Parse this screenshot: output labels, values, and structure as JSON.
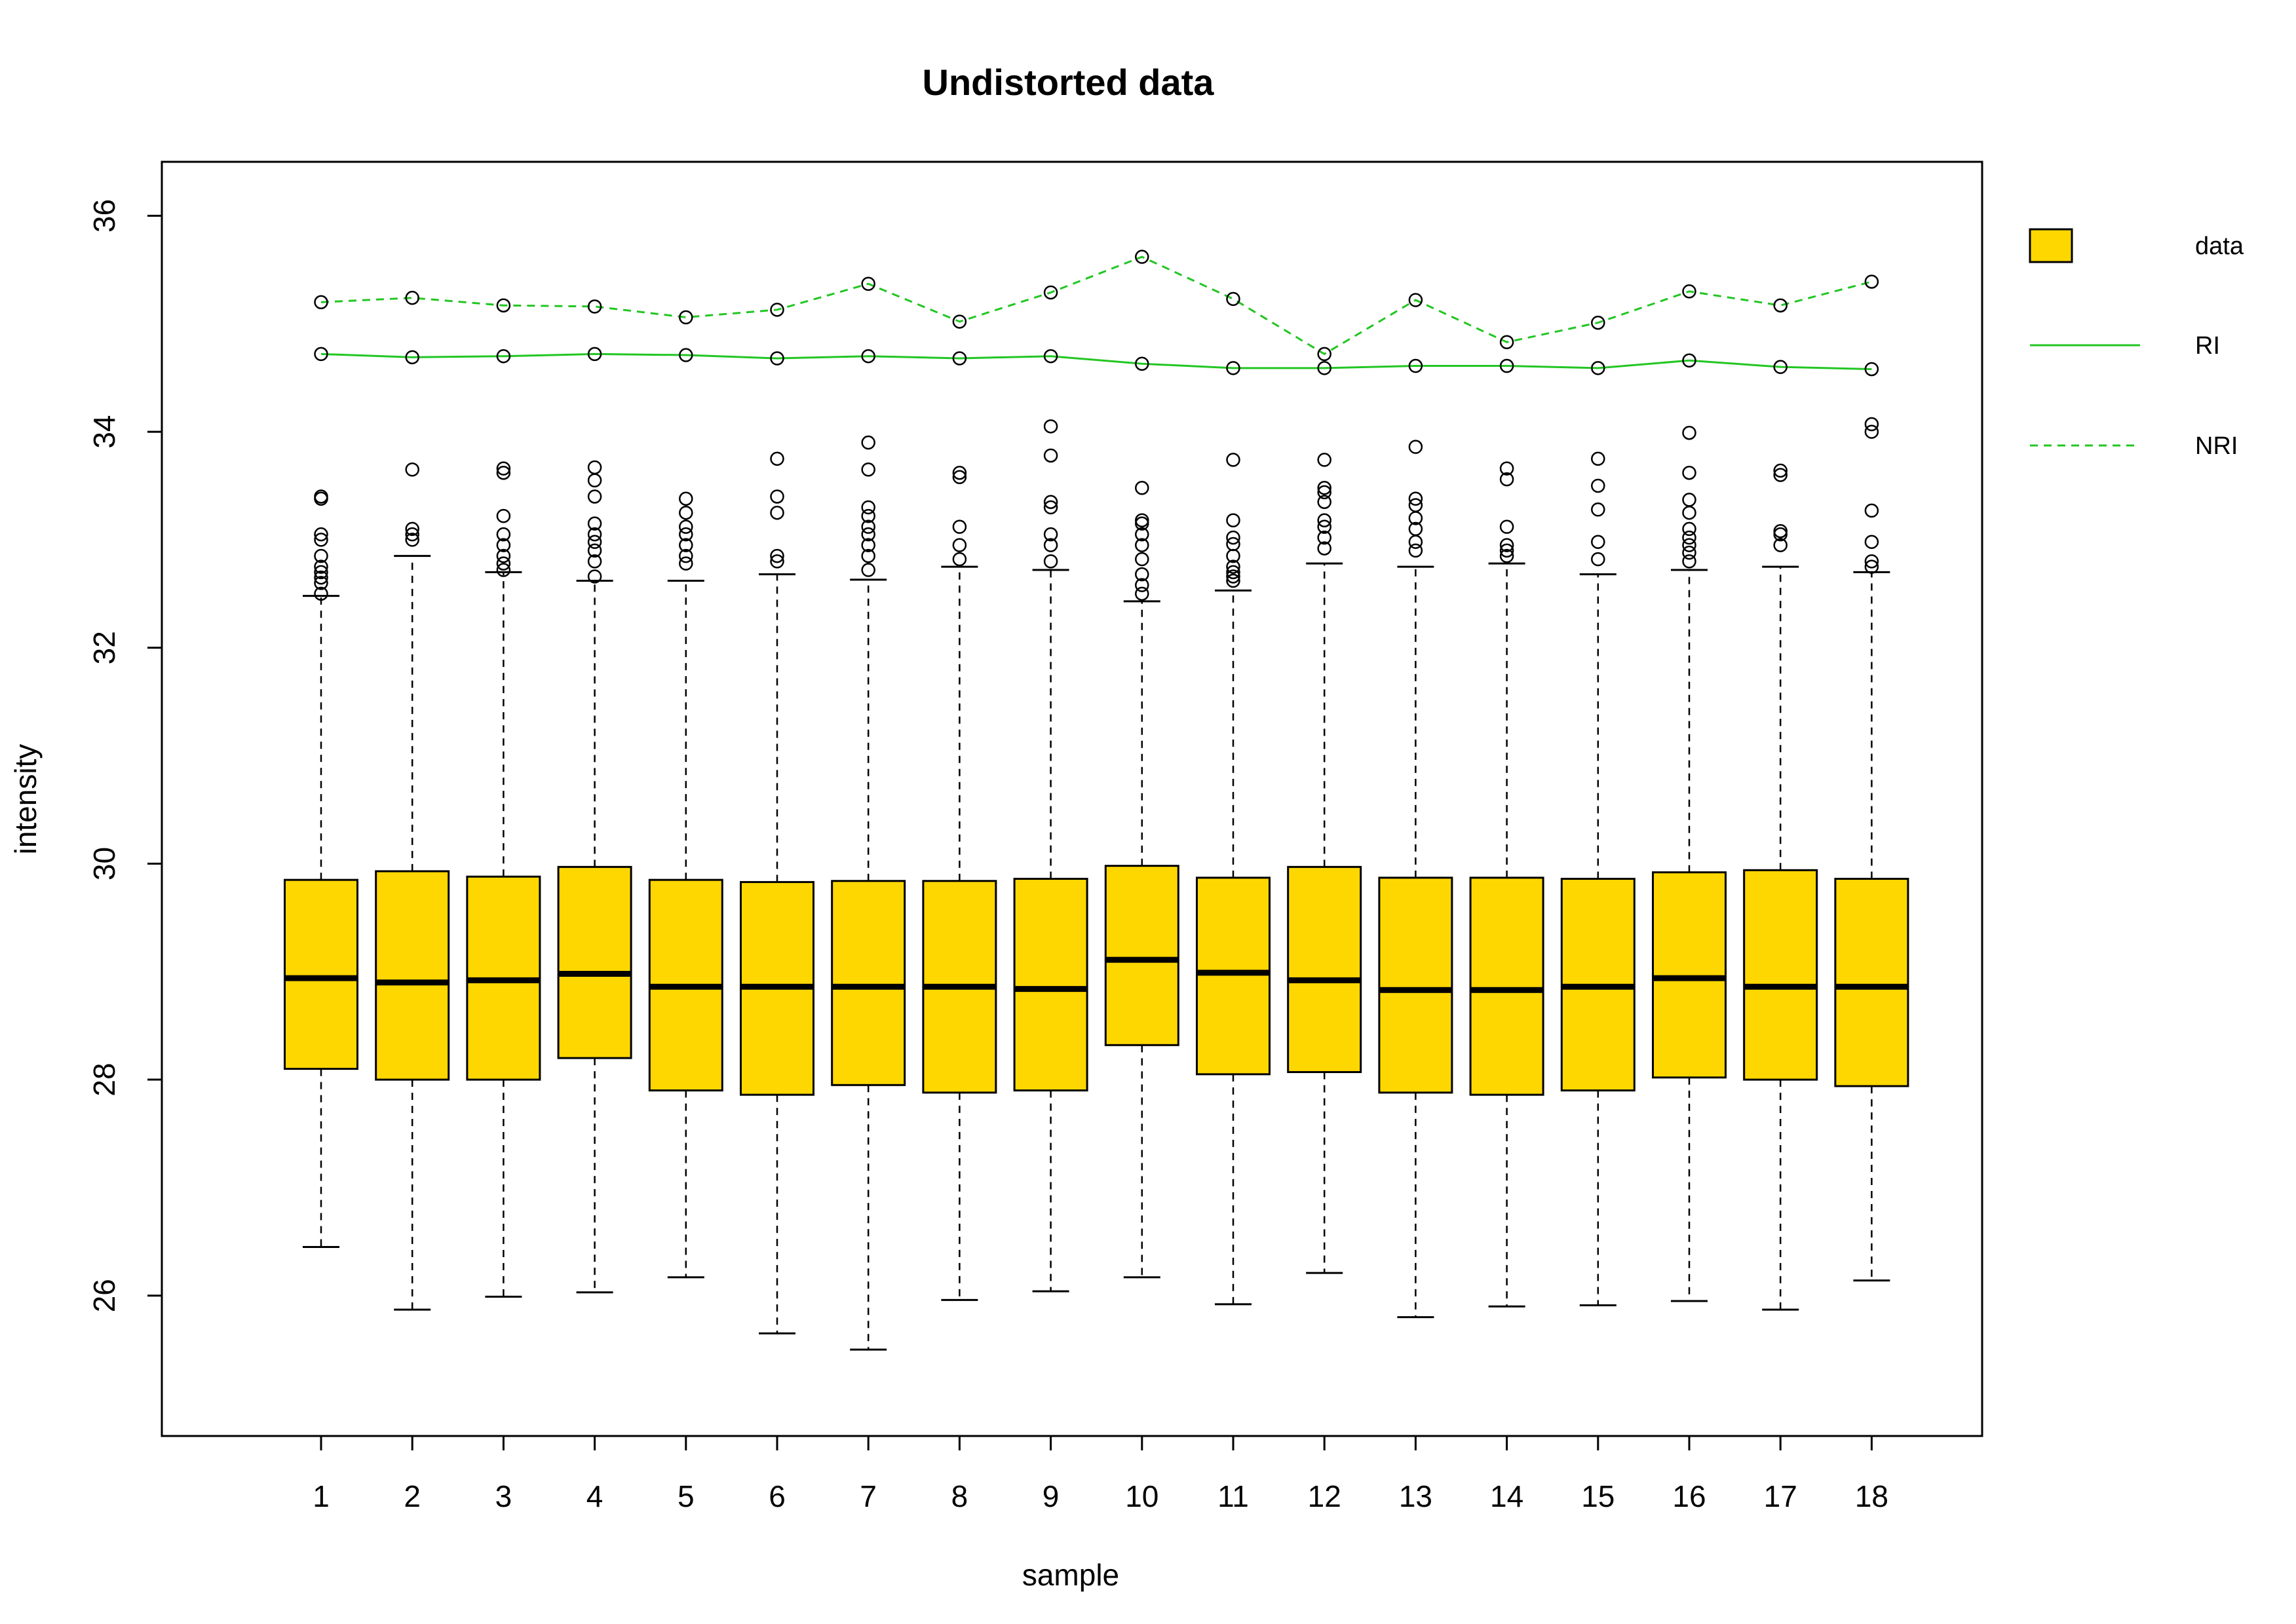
{
  "chart_data": {
    "type": "boxplot",
    "title": "Undistorted data",
    "xlabel": "sample",
    "ylabel": "intensity",
    "ylim": [
      24.7,
      36.5
    ],
    "y_ticks": [
      "26",
      "28",
      "30",
      "32",
      "34",
      "36"
    ],
    "categories": [
      "1",
      "2",
      "3",
      "4",
      "5",
      "6",
      "7",
      "8",
      "9",
      "10",
      "11",
      "12",
      "13",
      "14",
      "15",
      "16",
      "17",
      "18"
    ],
    "box_color": "#FFD700",
    "line_color": "#22C622",
    "legend": {
      "position": "right",
      "items": [
        {
          "label": "data",
          "kind": "box"
        },
        {
          "label": "RI",
          "kind": "solid-line"
        },
        {
          "label": "NRI",
          "kind": "dashed-line"
        }
      ]
    },
    "boxes": [
      {
        "sample": "1",
        "whisker_low": 26.45,
        "q1": 28.1,
        "median": 28.94,
        "q3": 29.85,
        "whisker_high": 32.48,
        "outliers": [
          32.5,
          32.6,
          32.65,
          32.7,
          32.75,
          32.85,
          33.0,
          33.05,
          33.38,
          33.4
        ]
      },
      {
        "sample": "2",
        "whisker_low": 25.87,
        "q1": 28.0,
        "median": 28.9,
        "q3": 29.93,
        "whisker_high": 32.85,
        "outliers": [
          33.0,
          33.05,
          33.1,
          33.65
        ]
      },
      {
        "sample": "3",
        "whisker_low": 25.99,
        "q1": 28.0,
        "median": 28.92,
        "q3": 29.88,
        "whisker_high": 32.7,
        "outliers": [
          32.72,
          32.78,
          32.85,
          32.95,
          33.05,
          33.22,
          33.62,
          33.66
        ]
      },
      {
        "sample": "4",
        "whisker_low": 26.03,
        "q1": 28.2,
        "median": 28.98,
        "q3": 29.97,
        "whisker_high": 32.62,
        "outliers": [
          32.66,
          32.8,
          32.9,
          32.98,
          33.05,
          33.15,
          33.4,
          33.55,
          33.67
        ]
      },
      {
        "sample": "5",
        "whisker_low": 26.17,
        "q1": 27.9,
        "median": 28.86,
        "q3": 29.85,
        "whisker_high": 32.62,
        "outliers": [
          32.78,
          32.85,
          32.95,
          33.05,
          33.12,
          33.25,
          33.38
        ]
      },
      {
        "sample": "6",
        "whisker_low": 25.65,
        "q1": 27.86,
        "median": 28.86,
        "q3": 29.83,
        "whisker_high": 32.68,
        "outliers": [
          32.8,
          32.85,
          33.25,
          33.4,
          33.75
        ]
      },
      {
        "sample": "7",
        "whisker_low": 25.5,
        "q1": 27.95,
        "median": 28.86,
        "q3": 29.84,
        "whisker_high": 32.63,
        "outliers": [
          32.72,
          32.85,
          32.95,
          33.05,
          33.12,
          33.22,
          33.3,
          33.65,
          33.9
        ]
      },
      {
        "sample": "8",
        "whisker_low": 25.96,
        "q1": 27.88,
        "median": 28.86,
        "q3": 29.84,
        "whisker_high": 32.75,
        "outliers": [
          32.82,
          32.95,
          33.12,
          33.58,
          33.62
        ]
      },
      {
        "sample": "9",
        "whisker_low": 26.04,
        "q1": 27.9,
        "median": 28.84,
        "q3": 29.86,
        "whisker_high": 32.72,
        "outliers": [
          32.8,
          32.95,
          33.05,
          33.3,
          33.35,
          33.78,
          34.05
        ]
      },
      {
        "sample": "10",
        "whisker_low": 26.17,
        "q1": 28.32,
        "median": 29.11,
        "q3": 29.98,
        "whisker_high": 32.43,
        "outliers": [
          32.5,
          32.58,
          32.68,
          32.82,
          32.95,
          33.05,
          33.15,
          33.18,
          33.48
        ]
      },
      {
        "sample": "11",
        "whisker_low": 25.92,
        "q1": 28.05,
        "median": 28.99,
        "q3": 29.87,
        "whisker_high": 32.53,
        "outliers": [
          32.62,
          32.66,
          32.7,
          32.75,
          32.85,
          32.96,
          33.02,
          33.18,
          33.74
        ]
      },
      {
        "sample": "12",
        "whisker_low": 26.21,
        "q1": 28.07,
        "median": 28.92,
        "q3": 29.97,
        "whisker_high": 32.78,
        "outliers": [
          32.92,
          33.02,
          33.12,
          33.18,
          33.35,
          33.44,
          33.48,
          33.74
        ]
      },
      {
        "sample": "13",
        "whisker_low": 25.8,
        "q1": 27.88,
        "median": 28.83,
        "q3": 29.87,
        "whisker_high": 32.75,
        "outliers": [
          32.9,
          32.98,
          33.1,
          33.2,
          33.32,
          33.38,
          33.86
        ]
      },
      {
        "sample": "14",
        "whisker_low": 25.9,
        "q1": 27.86,
        "median": 28.83,
        "q3": 29.87,
        "whisker_high": 32.78,
        "outliers": [
          32.85,
          32.9,
          32.95,
          33.12,
          33.56,
          33.66
        ]
      },
      {
        "sample": "15",
        "whisker_low": 25.91,
        "q1": 27.9,
        "median": 28.86,
        "q3": 29.86,
        "whisker_high": 32.68,
        "outliers": [
          32.82,
          32.98,
          33.28,
          33.5,
          33.75
        ]
      },
      {
        "sample": "16",
        "whisker_low": 25.95,
        "q1": 28.02,
        "median": 28.94,
        "q3": 29.92,
        "whisker_high": 32.72,
        "outliers": [
          32.8,
          32.88,
          32.95,
          33.02,
          33.1,
          33.25,
          33.37,
          33.62,
          33.99
        ]
      },
      {
        "sample": "17",
        "whisker_low": 25.87,
        "q1": 28.0,
        "median": 28.86,
        "q3": 29.94,
        "whisker_high": 32.75,
        "outliers": [
          32.95,
          33.05,
          33.08,
          33.6,
          33.64
        ]
      },
      {
        "sample": "18",
        "whisker_low": 26.14,
        "q1": 27.94,
        "median": 28.86,
        "q3": 29.86,
        "whisker_high": 32.7,
        "outliers": [
          32.75,
          32.8,
          32.98,
          33.27,
          34.0,
          34.07
        ]
      }
    ],
    "series": [
      {
        "name": "RI",
        "style": "solid",
        "values": [
          34.72,
          34.69,
          34.7,
          34.72,
          34.71,
          34.68,
          34.7,
          34.68,
          34.7,
          34.63,
          34.59,
          34.59,
          34.61,
          34.61,
          34.59,
          34.66,
          34.6,
          34.58
        ]
      },
      {
        "name": "NRI",
        "style": "dashed",
        "values": [
          35.2,
          35.24,
          35.17,
          35.16,
          35.06,
          35.13,
          35.37,
          35.02,
          35.29,
          35.62,
          35.23,
          34.72,
          35.22,
          34.83,
          35.01,
          35.3,
          35.17,
          35.39
        ]
      }
    ]
  }
}
